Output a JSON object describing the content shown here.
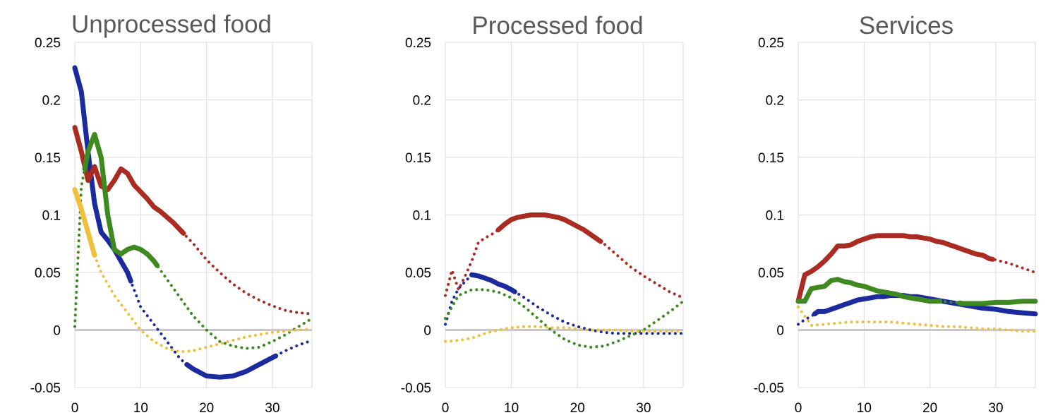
{
  "chart_data": [
    {
      "type": "line",
      "title": "Unprocessed food",
      "xlim": [
        0,
        36
      ],
      "ylim": [
        -0.05,
        0.25
      ],
      "x_ticks": [
        "0",
        "10",
        "20",
        "30"
      ],
      "y_ticks": [
        "0.25",
        "0.2",
        "0.15",
        "0.1",
        "0.05",
        "0",
        "-0.05"
      ],
      "grid": true,
      "series": [
        {
          "color": "#1b2b9e",
          "solid_segments": [
            [
              0,
              8.5
            ],
            [
              17,
              30.5
            ]
          ],
          "x": [
            0,
            1,
            2,
            3,
            4,
            5,
            6,
            7,
            8,
            9,
            10,
            12,
            14,
            16,
            17,
            18,
            20,
            22,
            24,
            26,
            28,
            30,
            32,
            34,
            36
          ],
          "y": [
            0.228,
            0.207,
            0.155,
            0.11,
            0.085,
            0.078,
            0.07,
            0.06,
            0.05,
            0.035,
            0.02,
            0.005,
            -0.01,
            -0.025,
            -0.03,
            -0.034,
            -0.04,
            -0.041,
            -0.04,
            -0.036,
            -0.03,
            -0.024,
            -0.018,
            -0.013,
            -0.009
          ]
        },
        {
          "color": "#a92b22",
          "solid_segments": [
            [
              0,
              16.5
            ]
          ],
          "x": [
            0,
            1,
            2,
            3,
            4,
            5,
            6,
            7,
            8,
            9,
            10,
            11,
            12,
            13,
            14,
            15,
            16,
            18,
            20,
            22,
            24,
            26,
            28,
            30,
            32,
            34,
            36
          ],
          "y": [
            0.176,
            0.155,
            0.13,
            0.142,
            0.125,
            0.122,
            0.13,
            0.14,
            0.136,
            0.126,
            0.12,
            0.114,
            0.107,
            0.103,
            0.098,
            0.093,
            0.087,
            0.075,
            0.061,
            0.05,
            0.04,
            0.032,
            0.026,
            0.021,
            0.017,
            0.015,
            0.014
          ]
        },
        {
          "color": "#3e8a21",
          "solid_segments": [
            [
              1.5,
              12.5
            ]
          ],
          "x": [
            0,
            1,
            2,
            3,
            4,
            5,
            6,
            7,
            8,
            9,
            10,
            11,
            12,
            14,
            16,
            18,
            20,
            22,
            24,
            26,
            28,
            30,
            32,
            34,
            36
          ],
          "y": [
            0.003,
            0.125,
            0.155,
            0.17,
            0.15,
            0.1,
            0.07,
            0.066,
            0.07,
            0.072,
            0.07,
            0.066,
            0.06,
            0.044,
            0.028,
            0.012,
            0.0,
            -0.01,
            -0.014,
            -0.016,
            -0.015,
            -0.01,
            -0.004,
            0.003,
            0.01
          ]
        },
        {
          "color": "#f0c03c",
          "solid_segments": [
            [
              0,
              3
            ]
          ],
          "x": [
            0,
            1,
            2,
            3,
            4,
            5,
            6,
            8,
            10,
            12,
            14,
            16,
            18,
            20,
            22,
            24,
            26,
            28,
            30,
            32,
            34,
            36
          ],
          "y": [
            0.122,
            0.105,
            0.085,
            0.065,
            0.05,
            0.04,
            0.03,
            0.015,
            0.0,
            -0.01,
            -0.016,
            -0.019,
            -0.018,
            -0.015,
            -0.012,
            -0.009,
            -0.006,
            -0.004,
            -0.002,
            -0.001,
            0.0,
            0.001
          ]
        }
      ]
    },
    {
      "type": "line",
      "title": "Processed food",
      "xlim": [
        0,
        36
      ],
      "ylim": [
        -0.05,
        0.25
      ],
      "x_ticks": [
        "0",
        "10",
        "20",
        "30"
      ],
      "y_ticks": [
        "0.25",
        "0.2",
        "0.15",
        "0.1",
        "0.05",
        "0",
        "-0.05"
      ],
      "grid": true,
      "series": [
        {
          "color": "#1b2b9e",
          "solid_segments": [
            [
              4,
              10.5
            ]
          ],
          "x": [
            0,
            1,
            2,
            3,
            4,
            5,
            6,
            7,
            8,
            9,
            10,
            12,
            14,
            16,
            18,
            20,
            22,
            24,
            26,
            28,
            30,
            32,
            34,
            36
          ],
          "y": [
            0.005,
            0.025,
            0.036,
            0.042,
            0.048,
            0.047,
            0.045,
            0.043,
            0.04,
            0.038,
            0.035,
            0.028,
            0.02,
            0.013,
            0.007,
            0.003,
            0.0,
            -0.002,
            -0.003,
            -0.003,
            -0.003,
            -0.003,
            -0.003,
            -0.003
          ]
        },
        {
          "color": "#a92b22",
          "solid_segments": [
            [
              8,
              23.5
            ]
          ],
          "x": [
            0,
            1,
            2,
            3,
            4,
            5,
            6,
            7,
            8,
            9,
            10,
            11,
            12,
            13,
            14,
            15,
            16,
            17,
            18,
            19,
            20,
            21,
            22,
            23,
            24,
            26,
            28,
            30,
            32,
            34,
            36
          ],
          "y": [
            0.03,
            0.052,
            0.035,
            0.047,
            0.06,
            0.076,
            0.08,
            0.083,
            0.087,
            0.092,
            0.096,
            0.098,
            0.099,
            0.1,
            0.1,
            0.1,
            0.099,
            0.098,
            0.096,
            0.093,
            0.09,
            0.087,
            0.083,
            0.079,
            0.075,
            0.065,
            0.055,
            0.047,
            0.04,
            0.033,
            0.028
          ]
        },
        {
          "color": "#3e8a21",
          "solid_segments": [],
          "x": [
            0,
            2,
            4,
            6,
            8,
            10,
            12,
            14,
            16,
            18,
            20,
            22,
            24,
            26,
            28,
            30,
            32,
            34,
            36
          ],
          "y": [
            0.01,
            0.03,
            0.035,
            0.035,
            0.033,
            0.028,
            0.02,
            0.01,
            0.0,
            -0.008,
            -0.013,
            -0.015,
            -0.014,
            -0.01,
            -0.005,
            0.0,
            0.008,
            0.016,
            0.025
          ]
        },
        {
          "color": "#f0c03c",
          "solid_segments": [],
          "x": [
            0,
            2,
            4,
            6,
            8,
            10,
            12,
            14,
            16,
            18,
            20,
            22,
            24,
            26,
            28,
            30,
            32,
            34,
            36
          ],
          "y": [
            -0.01,
            -0.009,
            -0.007,
            -0.003,
            0.0,
            0.002,
            0.003,
            0.003,
            0.002,
            0.002,
            0.001,
            0.0,
            0.0,
            0.0,
            -0.001,
            -0.001,
            -0.001,
            -0.001,
            -0.001
          ]
        }
      ]
    },
    {
      "type": "line",
      "title": "Services",
      "xlim": [
        0,
        36
      ],
      "ylim": [
        -0.05,
        0.25
      ],
      "x_ticks": [
        "0",
        "10",
        "20",
        "30"
      ],
      "y_ticks": [
        "0.25",
        "0.2",
        "0.15",
        "0.1",
        "0.05",
        "0",
        "-0.05"
      ],
      "grid": true,
      "series": [
        {
          "color": "#1b2b9e",
          "solid_segments": [
            [
              2.5,
              36
            ]
          ],
          "x": [
            0,
            1,
            2,
            3,
            4,
            5,
            6,
            7,
            8,
            9,
            10,
            11,
            12,
            13,
            14,
            15,
            16,
            17,
            18,
            20,
            22,
            24,
            26,
            28,
            30,
            32,
            34,
            36
          ],
          "y": [
            0.005,
            0.009,
            0.012,
            0.016,
            0.016,
            0.018,
            0.02,
            0.022,
            0.024,
            0.026,
            0.027,
            0.028,
            0.029,
            0.029,
            0.03,
            0.03,
            0.03,
            0.029,
            0.029,
            0.027,
            0.025,
            0.023,
            0.021,
            0.019,
            0.018,
            0.016,
            0.015,
            0.014
          ]
        },
        {
          "color": "#a92b22",
          "solid_segments": [
            [
              0,
              29.5
            ]
          ],
          "x": [
            0,
            1,
            2,
            3,
            4,
            5,
            6,
            7,
            8,
            9,
            10,
            11,
            12,
            13,
            14,
            15,
            16,
            17,
            18,
            19,
            20,
            21,
            22,
            23,
            24,
            25,
            26,
            27,
            28,
            29,
            30,
            32,
            34,
            36
          ],
          "y": [
            0.025,
            0.048,
            0.051,
            0.055,
            0.06,
            0.066,
            0.073,
            0.073,
            0.074,
            0.077,
            0.079,
            0.081,
            0.082,
            0.082,
            0.082,
            0.082,
            0.082,
            0.081,
            0.081,
            0.08,
            0.079,
            0.077,
            0.076,
            0.074,
            0.072,
            0.07,
            0.068,
            0.066,
            0.065,
            0.062,
            0.061,
            0.058,
            0.054,
            0.05
          ]
        },
        {
          "color": "#3e8a21",
          "solid_segments": [
            [
              0,
              21.5
            ],
            [
              24.5,
              36
            ]
          ],
          "x": [
            0,
            1,
            2,
            3,
            4,
            5,
            6,
            7,
            8,
            9,
            10,
            11,
            12,
            13,
            14,
            15,
            16,
            17,
            18,
            19,
            20,
            21,
            22,
            23,
            24,
            25,
            26,
            28,
            30,
            32,
            34,
            36
          ],
          "y": [
            0.025,
            0.025,
            0.036,
            0.037,
            0.038,
            0.043,
            0.044,
            0.042,
            0.041,
            0.039,
            0.038,
            0.036,
            0.034,
            0.033,
            0.032,
            0.031,
            0.029,
            0.028,
            0.027,
            0.026,
            0.025,
            0.025,
            0.025,
            0.024,
            0.024,
            0.023,
            0.023,
            0.023,
            0.024,
            0.024,
            0.025,
            0.025
          ]
        },
        {
          "color": "#f0c03c",
          "solid_segments": [],
          "x": [
            0,
            2,
            4,
            6,
            8,
            10,
            12,
            14,
            16,
            18,
            20,
            22,
            24,
            26,
            28,
            30,
            32,
            34,
            36
          ],
          "y": [
            0.02,
            0.004,
            0.005,
            0.006,
            0.007,
            0.007,
            0.007,
            0.007,
            0.006,
            0.005,
            0.004,
            0.003,
            0.003,
            0.002,
            0.001,
            0.001,
            0.0,
            -0.001,
            -0.001
          ]
        }
      ]
    }
  ]
}
